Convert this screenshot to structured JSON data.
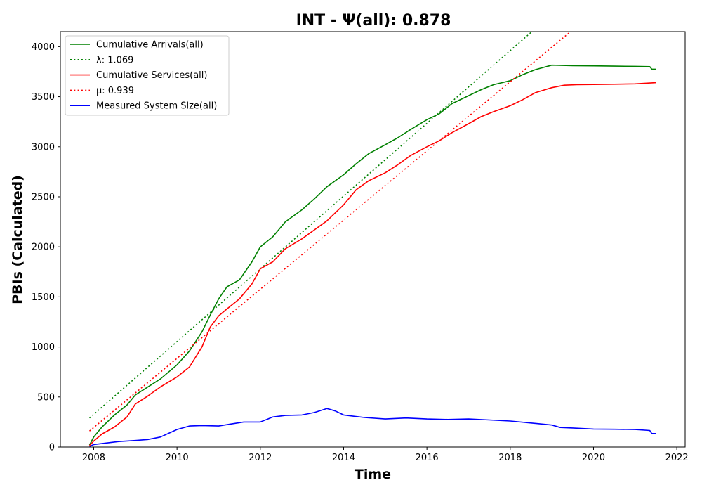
{
  "chart_data": {
    "type": "line",
    "title": "INT -  Ψ(all): 0.878",
    "xlabel": "Time",
    "ylabel": "PBIs (Calculated)",
    "xlim": [
      2007.2,
      2022.2
    ],
    "ylim": [
      0,
      4150
    ],
    "x_ticks": [
      2008,
      2010,
      2012,
      2014,
      2016,
      2018,
      2020,
      2022
    ],
    "y_ticks": [
      0,
      500,
      1000,
      1500,
      2000,
      2500,
      3000,
      3500,
      4000
    ],
    "x_tick_labels": [
      "2008",
      "2010",
      "2012",
      "2014",
      "2016",
      "2018",
      "2020",
      "2022"
    ],
    "y_tick_labels": [
      "0",
      "500",
      "1000",
      "1500",
      "2000",
      "2500",
      "3000",
      "3500",
      "4000"
    ],
    "grid": false,
    "legend_position": "top-left",
    "series": [
      {
        "name": "Cumulative Arrivals(all)",
        "style": "solid",
        "color": "#008000",
        "x": [
          2007.9,
          2008.0,
          2008.2,
          2008.5,
          2008.8,
          2009.0,
          2009.3,
          2009.6,
          2010.0,
          2010.3,
          2010.6,
          2010.8,
          2011.0,
          2011.2,
          2011.5,
          2011.8,
          2012.0,
          2012.3,
          2012.6,
          2013.0,
          2013.3,
          2013.6,
          2014.0,
          2014.3,
          2014.6,
          2015.0,
          2015.3,
          2015.6,
          2016.0,
          2016.3,
          2016.6,
          2017.0,
          2017.3,
          2017.6,
          2018.0,
          2018.3,
          2018.6,
          2019.0,
          2019.5,
          2020.0,
          2020.5,
          2021.0,
          2021.35,
          2021.4,
          2021.5
        ],
        "y": [
          20,
          100,
          200,
          320,
          420,
          520,
          600,
          680,
          820,
          960,
          1150,
          1320,
          1480,
          1600,
          1670,
          1850,
          2000,
          2100,
          2250,
          2370,
          2480,
          2600,
          2720,
          2830,
          2930,
          3020,
          3090,
          3170,
          3270,
          3330,
          3430,
          3510,
          3570,
          3620,
          3660,
          3720,
          3770,
          3815,
          3810,
          3808,
          3805,
          3803,
          3800,
          3775,
          3775
        ]
      },
      {
        "name": "λ: 1.069",
        "style": "dotted",
        "color": "#008000",
        "x": [
          2007.9,
          2018.52
        ],
        "y": [
          290,
          4150
        ]
      },
      {
        "name": "Cumulative Services(all)",
        "style": "solid",
        "color": "#ff0000",
        "x": [
          2007.9,
          2008.0,
          2008.2,
          2008.5,
          2008.8,
          2009.0,
          2009.3,
          2009.6,
          2010.0,
          2010.3,
          2010.6,
          2010.8,
          2011.0,
          2011.2,
          2011.5,
          2011.8,
          2012.0,
          2012.3,
          2012.6,
          2013.0,
          2013.3,
          2013.6,
          2014.0,
          2014.3,
          2014.6,
          2015.0,
          2015.3,
          2015.6,
          2016.0,
          2016.3,
          2016.6,
          2017.0,
          2017.3,
          2017.6,
          2018.0,
          2018.3,
          2018.6,
          2019.0,
          2019.3,
          2019.6,
          2020.0,
          2020.5,
          2021.0,
          2021.5
        ],
        "y": [
          15,
          60,
          130,
          200,
          300,
          430,
          510,
          600,
          700,
          800,
          1000,
          1200,
          1310,
          1380,
          1480,
          1630,
          1780,
          1850,
          1980,
          2080,
          2170,
          2260,
          2420,
          2570,
          2660,
          2740,
          2820,
          2910,
          3000,
          3060,
          3140,
          3230,
          3300,
          3350,
          3410,
          3470,
          3540,
          3590,
          3615,
          3620,
          3622,
          3625,
          3628,
          3640
        ]
      },
      {
        "name": "μ: 0.939",
        "style": "dotted",
        "color": "#ff0000",
        "x": [
          2007.9,
          2019.45
        ],
        "y": [
          160,
          4150
        ]
      },
      {
        "name": "Measured System Size(all)",
        "style": "solid",
        "color": "#0000ff",
        "x": [
          2007.9,
          2008.0,
          2008.3,
          2008.6,
          2009.0,
          2009.3,
          2009.6,
          2010.0,
          2010.3,
          2010.6,
          2011.0,
          2011.3,
          2011.6,
          2012.0,
          2012.3,
          2012.6,
          2013.0,
          2013.3,
          2013.6,
          2013.8,
          2014.0,
          2014.5,
          2015.0,
          2015.5,
          2016.0,
          2016.5,
          2017.0,
          2017.5,
          2018.0,
          2018.5,
          2019.0,
          2019.2,
          2019.5,
          2020.0,
          2020.5,
          2021.0,
          2021.35,
          2021.4,
          2021.5
        ],
        "y": [
          5,
          25,
          40,
          55,
          65,
          75,
          100,
          175,
          210,
          215,
          210,
          230,
          250,
          250,
          300,
          315,
          320,
          345,
          385,
          360,
          320,
          295,
          280,
          290,
          280,
          275,
          280,
          270,
          260,
          240,
          220,
          195,
          190,
          180,
          178,
          175,
          165,
          135,
          135
        ]
      }
    ]
  }
}
